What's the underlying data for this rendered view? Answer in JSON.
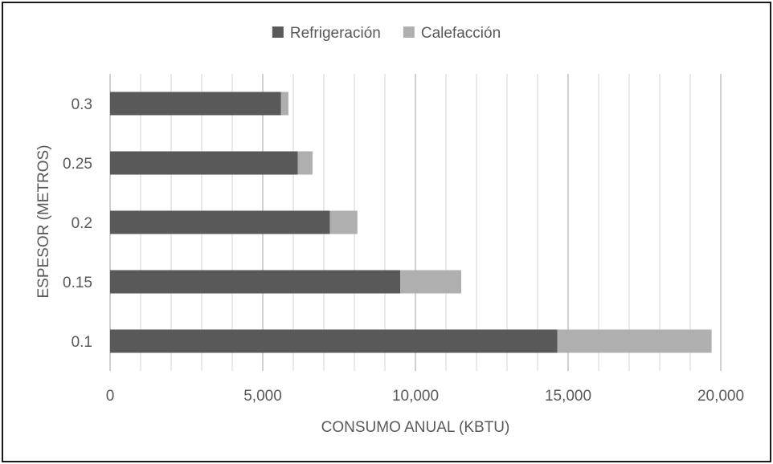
{
  "chart_data": {
    "type": "bar",
    "orientation": "horizontal",
    "stacked": true,
    "categories": [
      "0.1",
      "0.15",
      "0.2",
      "0.25",
      "0.3"
    ],
    "series": [
      {
        "name": "Refrigeración",
        "color": "#595959",
        "values": [
          14650,
          9500,
          7200,
          6150,
          5600
        ]
      },
      {
        "name": "Calefacción",
        "color": "#afafaf",
        "values": [
          5050,
          2000,
          900,
          480,
          240
        ]
      }
    ],
    "xlabel": "CONSUMO ANUAL (KBTU)",
    "ylabel": "ESPESOR (METROS)",
    "xlim": [
      0,
      20000
    ],
    "x_ticks": [
      "0",
      "5,000",
      "10,000",
      "15,000",
      "20,000"
    ],
    "grid": true,
    "legend_position": "top"
  }
}
